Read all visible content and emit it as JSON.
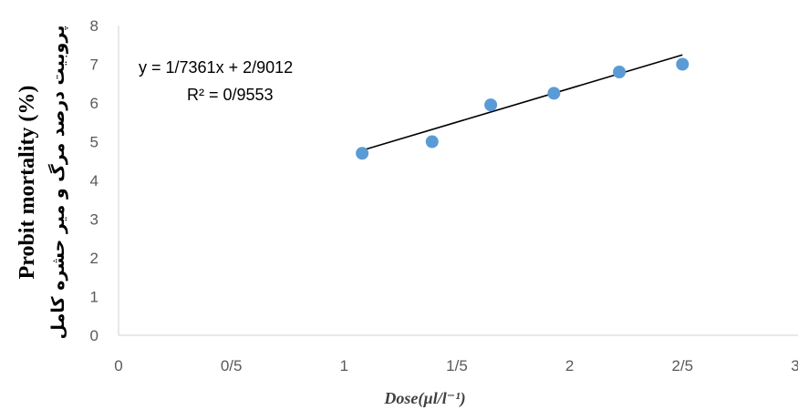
{
  "chart_data": {
    "type": "scatter",
    "title": "",
    "xlabel": "Dose(µl/l⁻¹)",
    "ylabel": "Probit mortality (%)",
    "ylabel_secondary": "پروبیت درصد مرگ و میر حشره کامل",
    "xlim": [
      0,
      3
    ],
    "ylim": [
      0,
      8
    ],
    "x_ticks": [
      0,
      0.5,
      1,
      1.5,
      2,
      2.5,
      3
    ],
    "x_tick_labels": [
      "0",
      "0/5",
      "1",
      "1/5",
      "2",
      "2/5",
      "3"
    ],
    "y_ticks": [
      0,
      1,
      2,
      3,
      4,
      5,
      6,
      7,
      8
    ],
    "y_tick_labels": [
      "0",
      "1",
      "2",
      "3",
      "4",
      "5",
      "6",
      "7",
      "8"
    ],
    "grid": false,
    "points": [
      {
        "x": 1.08,
        "y": 4.7
      },
      {
        "x": 1.39,
        "y": 5.0
      },
      {
        "x": 1.65,
        "y": 5.95
      },
      {
        "x": 1.93,
        "y": 6.25
      },
      {
        "x": 2.22,
        "y": 6.8
      },
      {
        "x": 2.5,
        "y": 7.0
      }
    ],
    "point_color": "#5b9bd5",
    "trendline": {
      "slope": 1.7361,
      "intercept": 2.9012,
      "x_range": [
        1.08,
        2.5
      ],
      "equation": "y = 1/7361x + 2/9012",
      "r_squared_label": "R² = 0/9553",
      "color": "#000000"
    }
  }
}
